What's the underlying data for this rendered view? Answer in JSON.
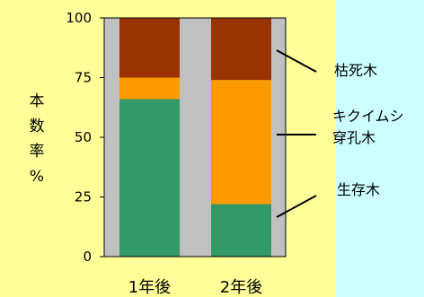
{
  "chart_data": {
    "type": "bar",
    "stacked": true,
    "categories": [
      "1年後",
      "2年後"
    ],
    "series": [
      {
        "name": "生存木",
        "values": [
          66,
          22
        ],
        "color": "#339966"
      },
      {
        "name": "キクイムシ穿孔木",
        "values": [
          9,
          52
        ],
        "color": "#ff9900"
      },
      {
        "name": "枯死木",
        "values": [
          25,
          26
        ],
        "color": "#993300"
      }
    ],
    "ylabel": "本数率%",
    "ylim": [
      0,
      100
    ],
    "yticks": [
      0,
      25,
      50,
      75,
      100
    ],
    "grid": false,
    "legend_placement": "right",
    "legend": [
      {
        "key": "legend-dead",
        "lines": [
          "枯死木"
        ]
      },
      {
        "key": "legend-beetle",
        "lines": [
          "キクイムシ",
          "穿孔木"
        ]
      },
      {
        "key": "legend-alive",
        "lines": [
          "生存木"
        ]
      }
    ],
    "colors": {
      "plot_background": "#c0c0c0",
      "panel_background": "#ffff99",
      "page_background": "#ccffff"
    }
  }
}
